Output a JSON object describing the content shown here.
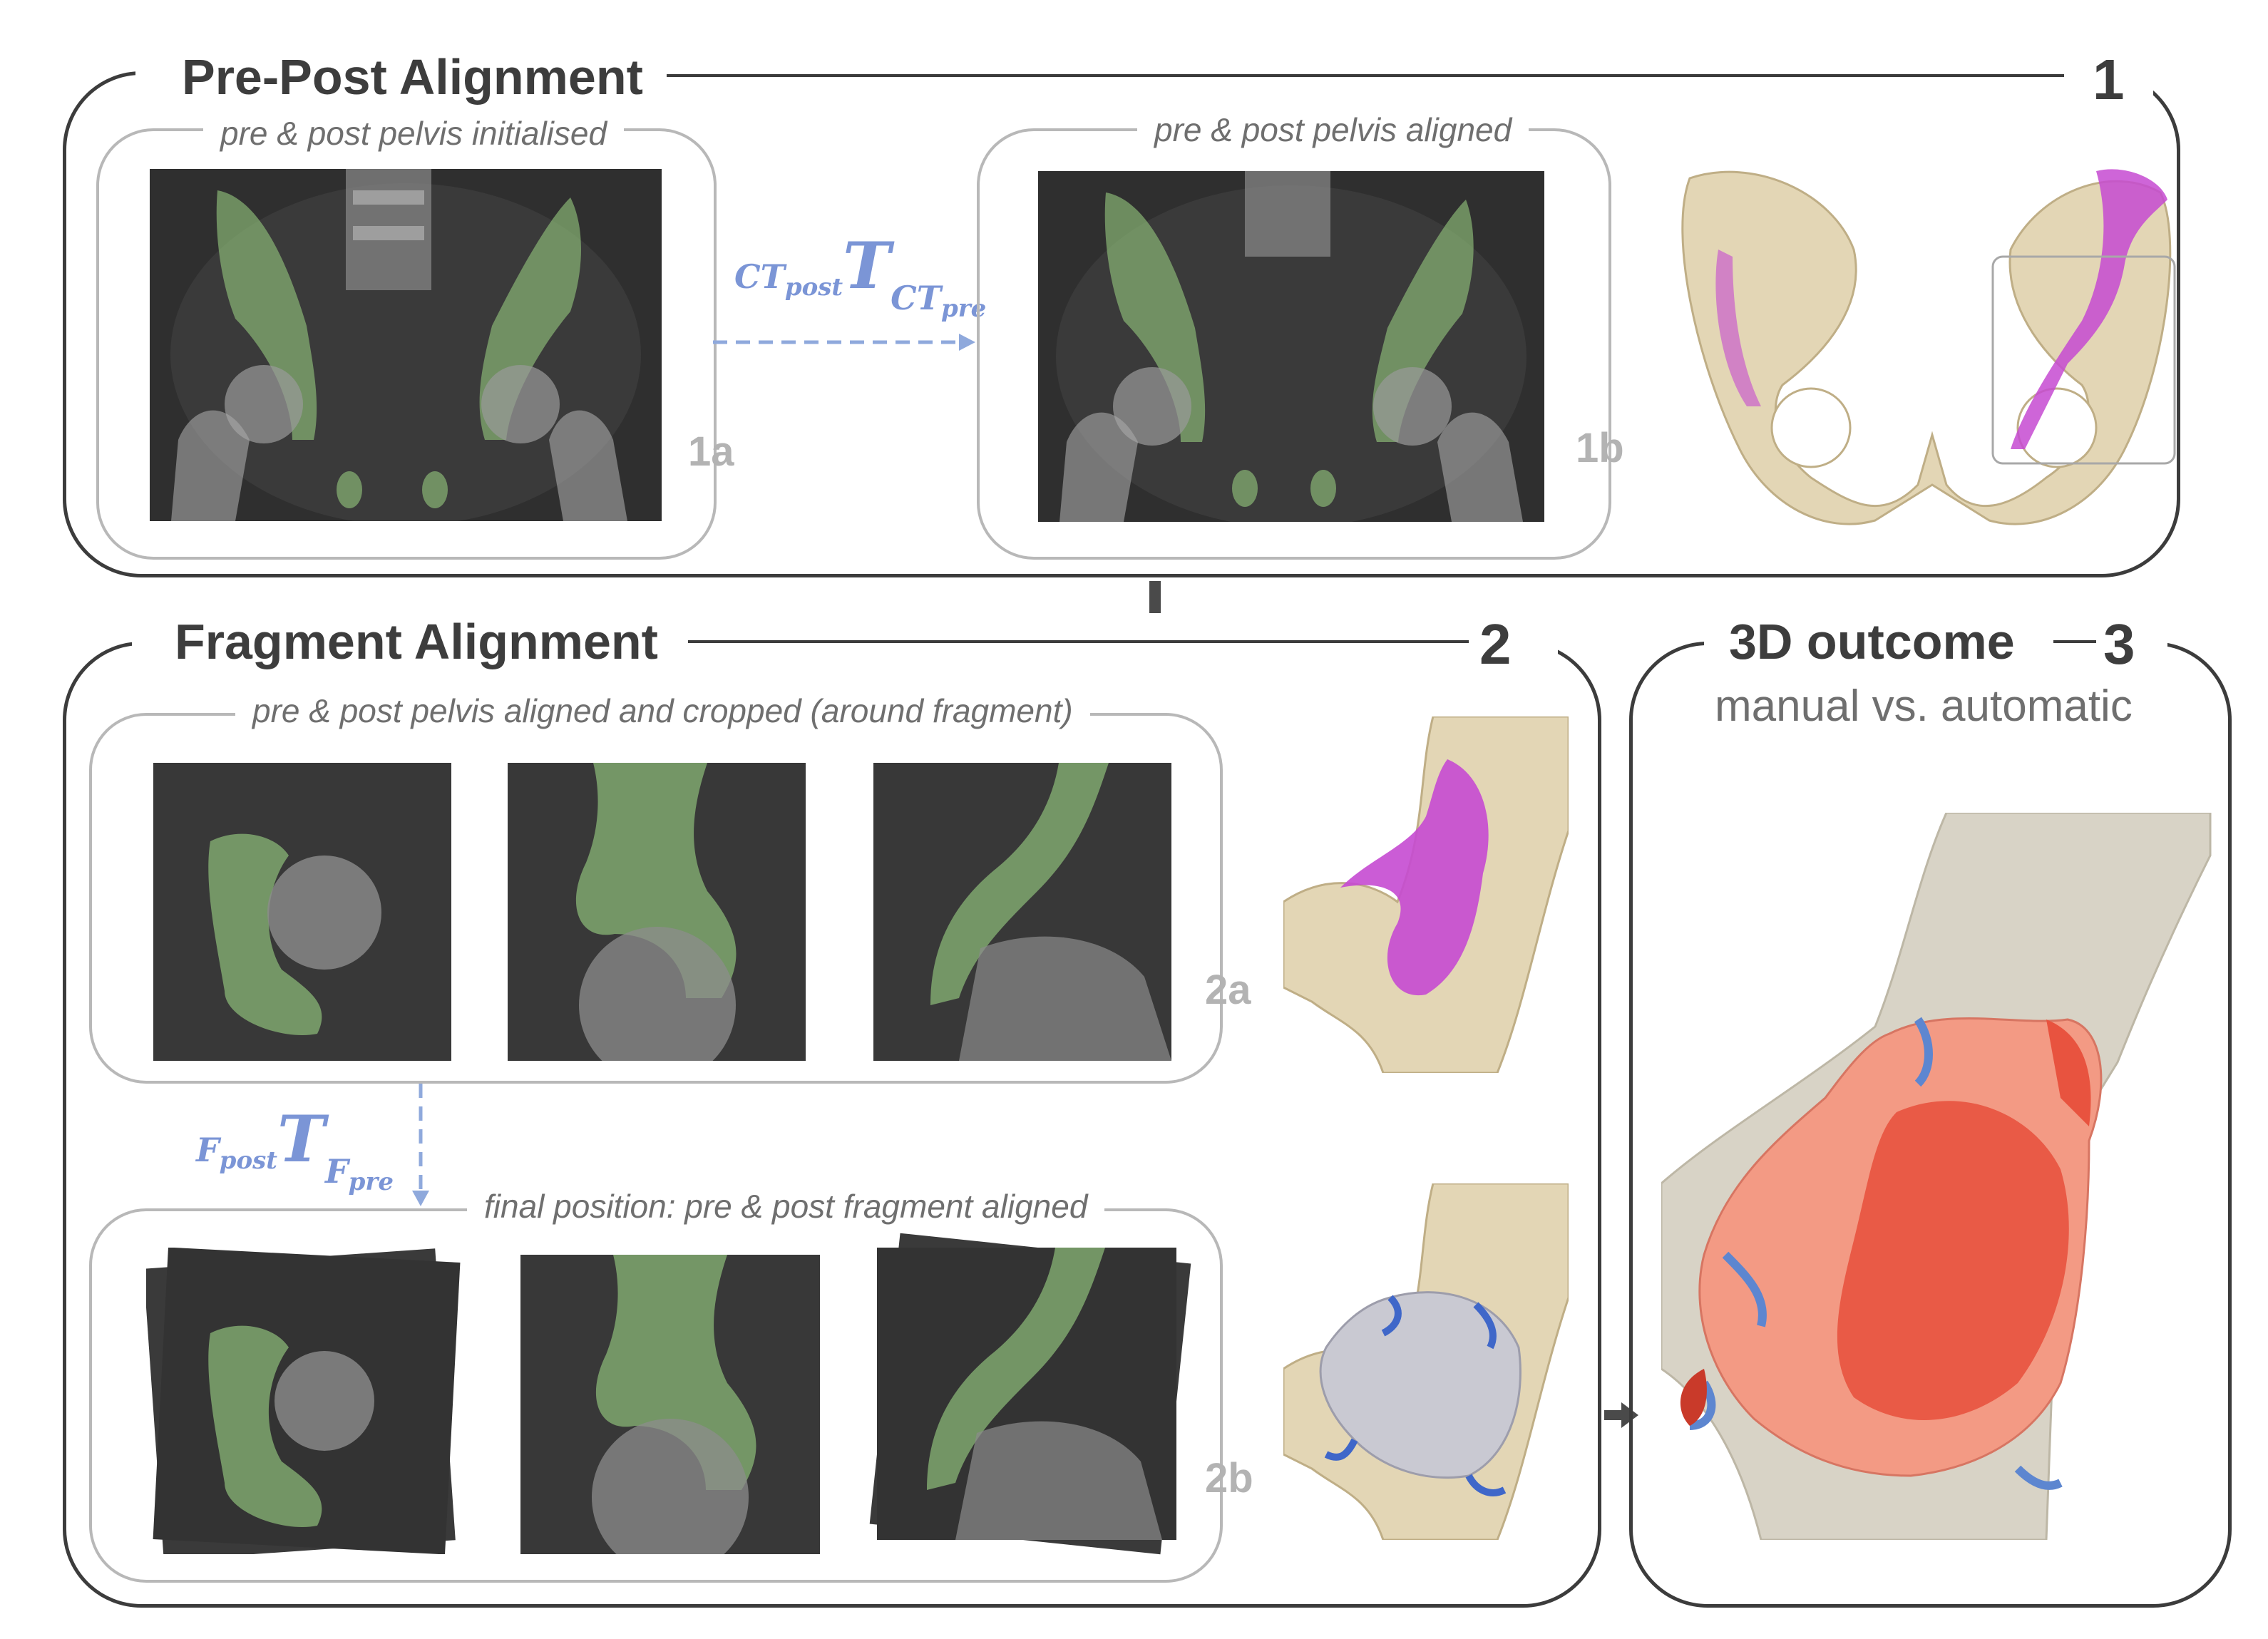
{
  "panel1": {
    "title": "Pre-Post Alignment",
    "number": "1",
    "caption_a": "pre & post pelvis initialised",
    "caption_b": "pre & post pelvis aligned",
    "tag_a": "1a",
    "tag_b": "1b",
    "transform": {
      "top": "CT",
      "top_sub": "post",
      "T": "T",
      "bottom": "CT",
      "bottom_sub": "pre"
    }
  },
  "panel2": {
    "title": "Fragment Alignment",
    "number": "2",
    "caption_a": "pre & post pelvis aligned and cropped (around fragment)",
    "caption_b": "final position: pre & post fragment aligned",
    "tag_a": "2a",
    "tag_b": "2b",
    "transform": {
      "top": "F",
      "top_sub": "post",
      "T": "T",
      "bottom": "F",
      "bottom_sub": "pre"
    }
  },
  "panel3": {
    "title": "3D outcome",
    "number": "3",
    "subtitle": "manual vs. automatic"
  },
  "colors": {
    "frame": "#3c3c3c",
    "inner_frame": "#b8b8b8",
    "arrow_blue": "#8fa9dc",
    "bone": "#e3d6b5",
    "green_overlay": "#8fbf7a",
    "magenta": "#c54ad1",
    "manual_red": "#e8533f",
    "automatic_blue": "#5d86d0"
  },
  "icons": [
    "arrow-down-icon",
    "arrow-right-icon",
    "dashed-arrow-right-icon",
    "dashed-arrow-down-icon"
  ]
}
